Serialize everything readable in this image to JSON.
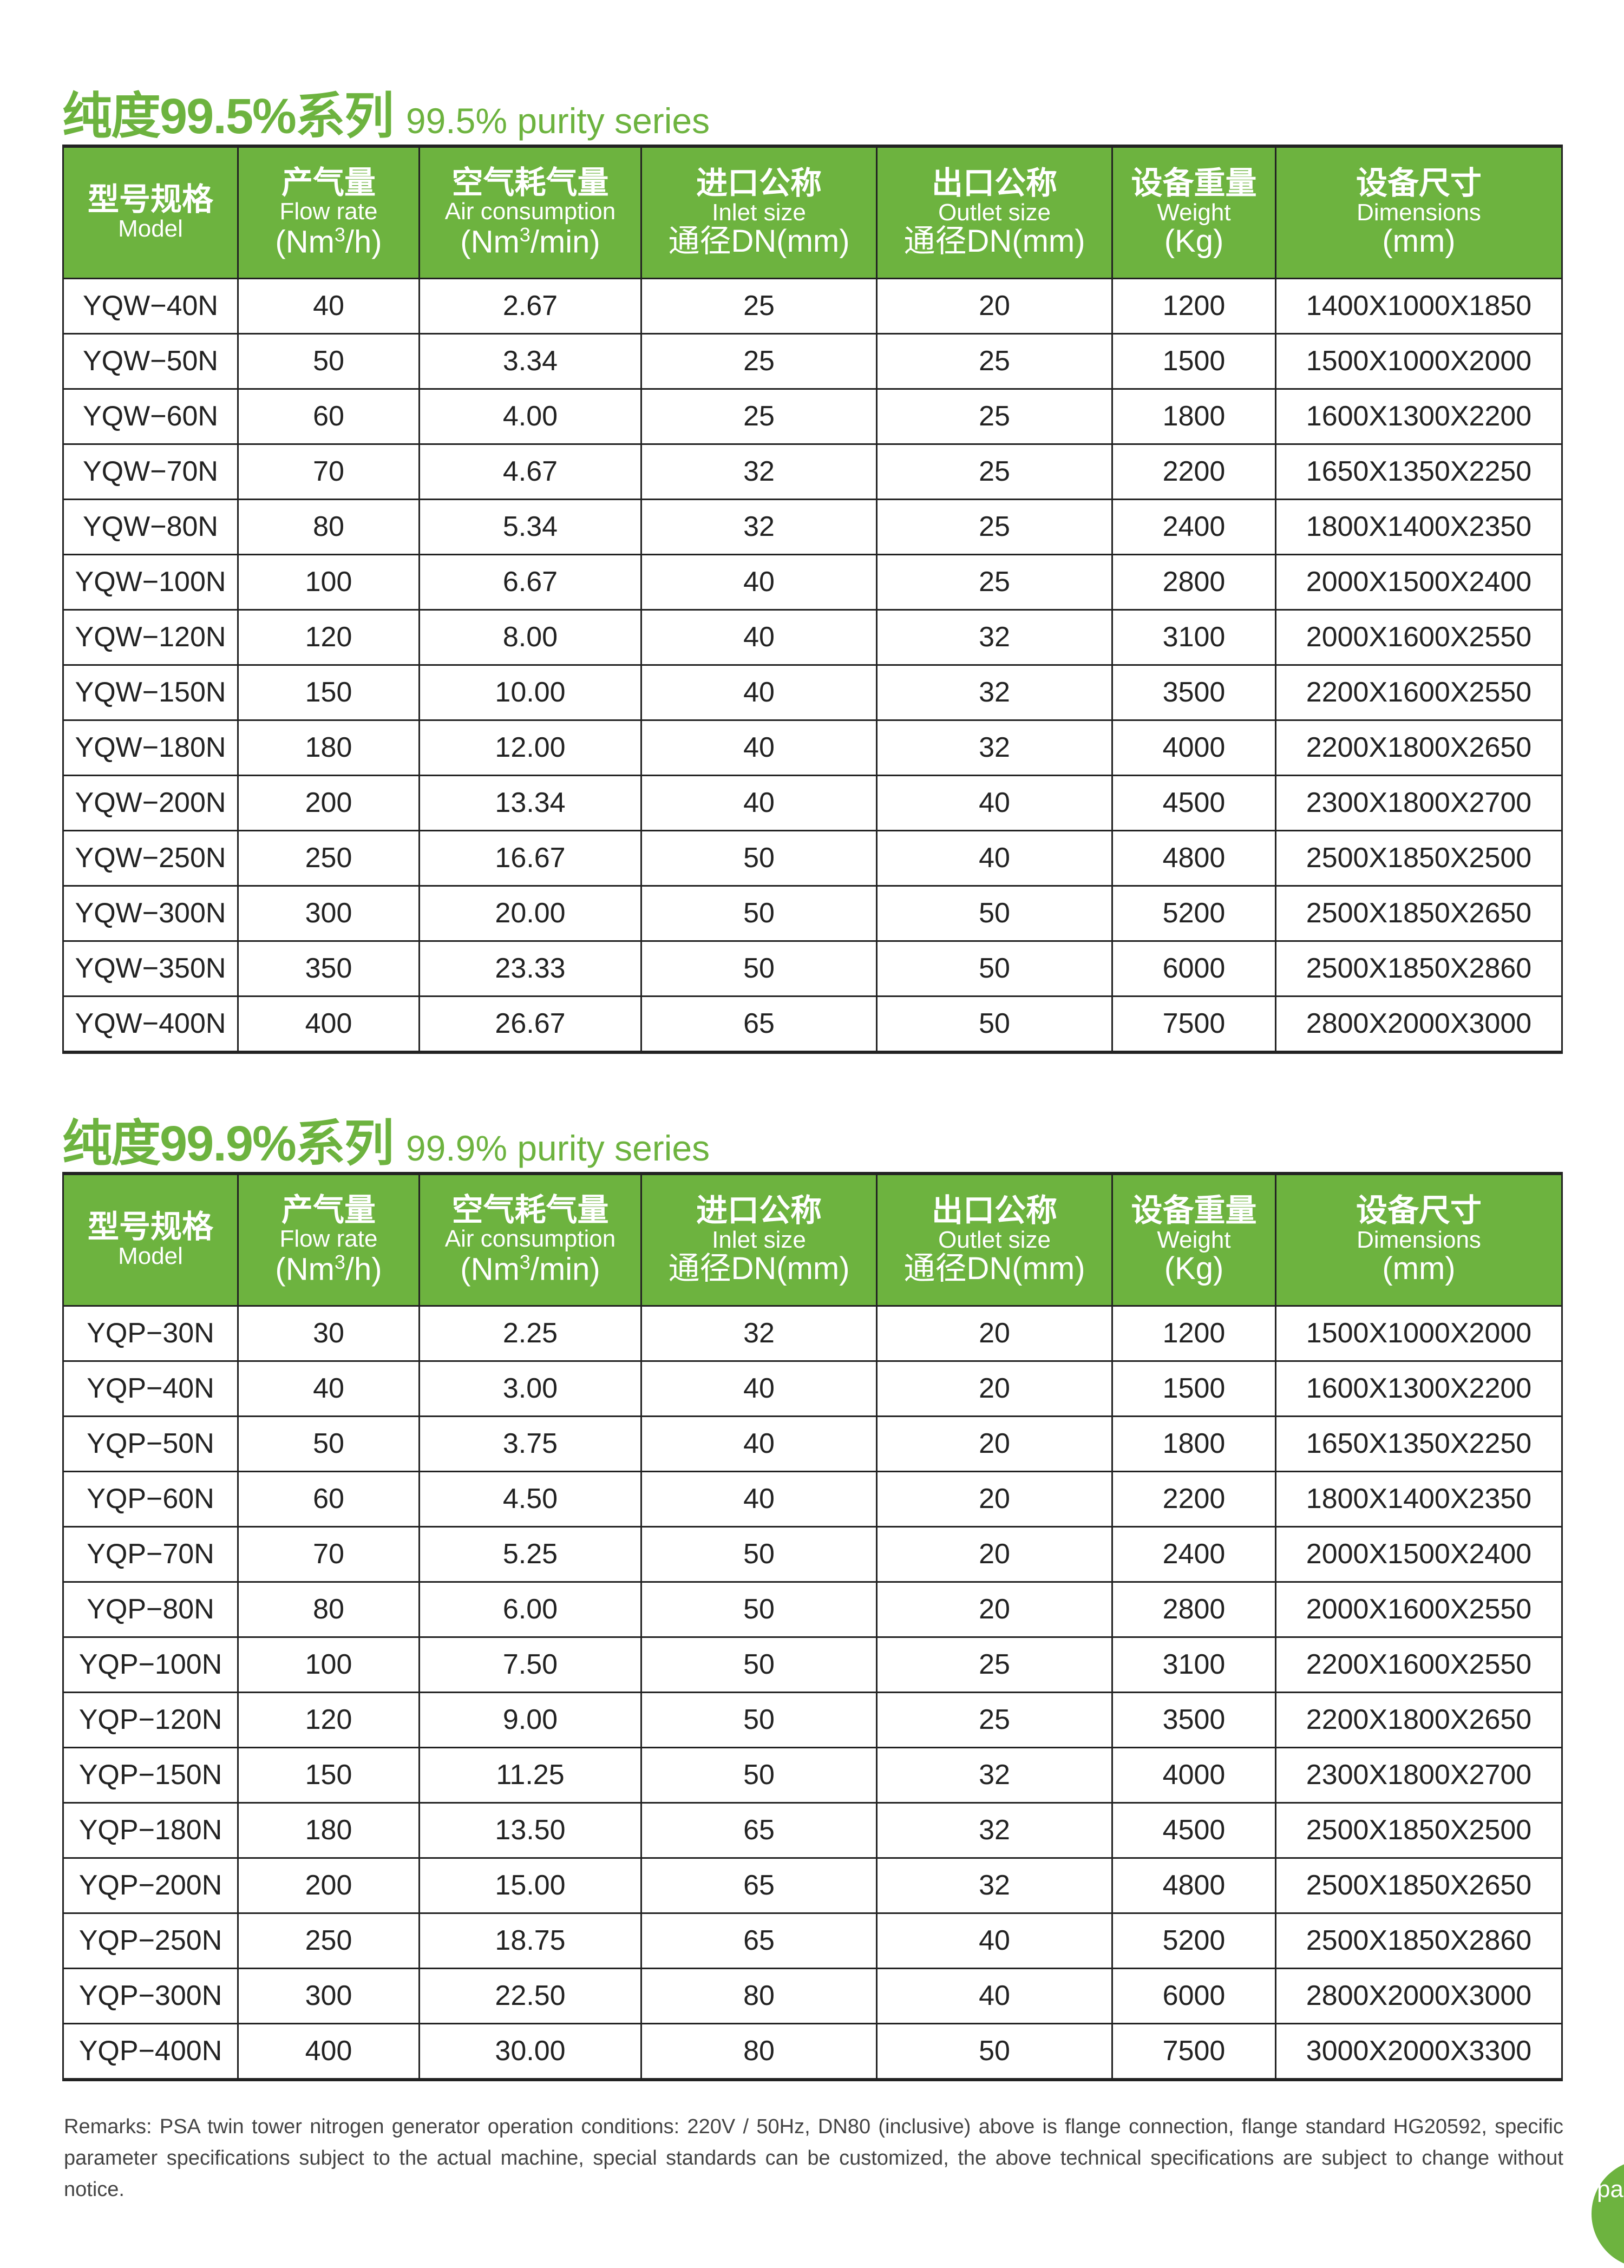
{
  "colors": {
    "accent": "#6db33f"
  },
  "headers": [
    {
      "zh": "型号规格",
      "en": "Model",
      "unit": ""
    },
    {
      "zh": "产气量",
      "en": "Flow rate",
      "unit": "(Nm³/h)"
    },
    {
      "zh": "空气耗气量",
      "en": "Air consumption",
      "unit": "(Nm³/min)"
    },
    {
      "zh": "进口公称",
      "en": "Inlet size",
      "unit": "通径DN(mm)"
    },
    {
      "zh": "出口公称",
      "en": "Outlet size",
      "unit": "通径DN(mm)"
    },
    {
      "zh": "设备重量",
      "en": "Weight",
      "unit": "(Kg)"
    },
    {
      "zh": "设备尺寸",
      "en": "Dimensions",
      "unit": "(mm)"
    }
  ],
  "tables": [
    {
      "title_zh": "纯度99.5%系列",
      "title_en": "99.5% purity series",
      "rows": [
        [
          "YQW−40N",
          "40",
          "2.67",
          "25",
          "20",
          "1200",
          "1400X1000X1850"
        ],
        [
          "YQW−50N",
          "50",
          "3.34",
          "25",
          "25",
          "1500",
          "1500X1000X2000"
        ],
        [
          "YQW−60N",
          "60",
          "4.00",
          "25",
          "25",
          "1800",
          "1600X1300X2200"
        ],
        [
          "YQW−70N",
          "70",
          "4.67",
          "32",
          "25",
          "2200",
          "1650X1350X2250"
        ],
        [
          "YQW−80N",
          "80",
          "5.34",
          "32",
          "25",
          "2400",
          "1800X1400X2350"
        ],
        [
          "YQW−100N",
          "100",
          "6.67",
          "40",
          "25",
          "2800",
          "2000X1500X2400"
        ],
        [
          "YQW−120N",
          "120",
          "8.00",
          "40",
          "32",
          "3100",
          "2000X1600X2550"
        ],
        [
          "YQW−150N",
          "150",
          "10.00",
          "40",
          "32",
          "3500",
          "2200X1600X2550"
        ],
        [
          "YQW−180N",
          "180",
          "12.00",
          "40",
          "32",
          "4000",
          "2200X1800X2650"
        ],
        [
          "YQW−200N",
          "200",
          "13.34",
          "40",
          "40",
          "4500",
          "2300X1800X2700"
        ],
        [
          "YQW−250N",
          "250",
          "16.67",
          "50",
          "40",
          "4800",
          "2500X1850X2500"
        ],
        [
          "YQW−300N",
          "300",
          "20.00",
          "50",
          "50",
          "5200",
          "2500X1850X2650"
        ],
        [
          "YQW−350N",
          "350",
          "23.33",
          "50",
          "50",
          "6000",
          "2500X1850X2860"
        ],
        [
          "YQW−400N",
          "400",
          "26.67",
          "65",
          "50",
          "7500",
          "2800X2000X3000"
        ]
      ]
    },
    {
      "title_zh": "纯度99.9%系列",
      "title_en": "99.9% purity series",
      "rows": [
        [
          "YQP−30N",
          "30",
          "2.25",
          "32",
          "20",
          "1200",
          "1500X1000X2000"
        ],
        [
          "YQP−40N",
          "40",
          "3.00",
          "40",
          "20",
          "1500",
          "1600X1300X2200"
        ],
        [
          "YQP−50N",
          "50",
          "3.75",
          "40",
          "20",
          "1800",
          "1650X1350X2250"
        ],
        [
          "YQP−60N",
          "60",
          "4.50",
          "40",
          "20",
          "2200",
          "1800X1400X2350"
        ],
        [
          "YQP−70N",
          "70",
          "5.25",
          "50",
          "20",
          "2400",
          "2000X1500X2400"
        ],
        [
          "YQP−80N",
          "80",
          "6.00",
          "50",
          "20",
          "2800",
          "2000X1600X2550"
        ],
        [
          "YQP−100N",
          "100",
          "7.50",
          "50",
          "25",
          "3100",
          "2200X1600X2550"
        ],
        [
          "YQP−120N",
          "120",
          "9.00",
          "50",
          "25",
          "3500",
          "2200X1800X2650"
        ],
        [
          "YQP−150N",
          "150",
          "11.25",
          "50",
          "32",
          "4000",
          "2300X1800X2700"
        ],
        [
          "YQP−180N",
          "180",
          "13.50",
          "65",
          "32",
          "4500",
          "2500X1850X2500"
        ],
        [
          "YQP−200N",
          "200",
          "15.00",
          "65",
          "32",
          "4800",
          "2500X1850X2650"
        ],
        [
          "YQP−250N",
          "250",
          "18.75",
          "65",
          "40",
          "5200",
          "2500X1850X2860"
        ],
        [
          "YQP−300N",
          "300",
          "22.50",
          "80",
          "40",
          "6000",
          "2800X2000X3000"
        ],
        [
          "YQP−400N",
          "400",
          "30.00",
          "80",
          "50",
          "7500",
          "3000X2000X3300"
        ]
      ]
    }
  ],
  "remarks": "Remarks: PSA twin tower nitrogen generator operation conditions: 220V / 50Hz, DN80 (inclusive) above is flange connection, flange standard HG20592, specific parameter specifications subject to the actual machine, special standards can be customized, the above technical specifications are subject to change without notice.",
  "page_badge": "pa"
}
